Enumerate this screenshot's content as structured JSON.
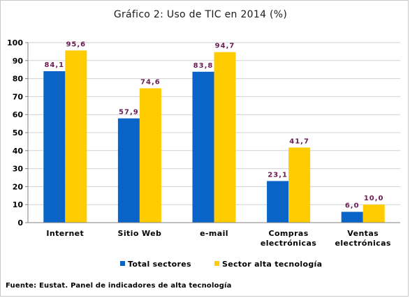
{
  "chart_data": {
    "type": "bar",
    "title": "Gráfico 2: Uso de TIC en 2014 (%)",
    "categories": [
      [
        "Internet"
      ],
      [
        "Sitio Web"
      ],
      [
        "e-mail"
      ],
      [
        "Compras",
        "electrónicas"
      ],
      [
        "Ventas",
        "electrónicas"
      ]
    ],
    "series": [
      {
        "name": "Total sectores",
        "values": [
          84.1,
          57.9,
          83.8,
          23.1,
          6.0
        ],
        "labels": [
          "84,1",
          "57,9",
          "83,8",
          "23,1",
          "6,0"
        ],
        "color": "#0a64c8"
      },
      {
        "name": "Sector alta tecnología",
        "values": [
          95.6,
          74.6,
          94.7,
          41.7,
          10.0
        ],
        "labels": [
          "95,6",
          "74,6",
          "94,7",
          "41,7",
          "10,0"
        ],
        "color": "#ffcc00"
      }
    ],
    "ylim": [
      0,
      100
    ],
    "yticks": [
      0,
      10,
      20,
      30,
      40,
      50,
      60,
      70,
      80,
      90,
      100
    ],
    "grid": true,
    "legend_position": "bottom"
  },
  "source_note": "Fuente: Eustat. Panel de indicadores de alta tecnología"
}
